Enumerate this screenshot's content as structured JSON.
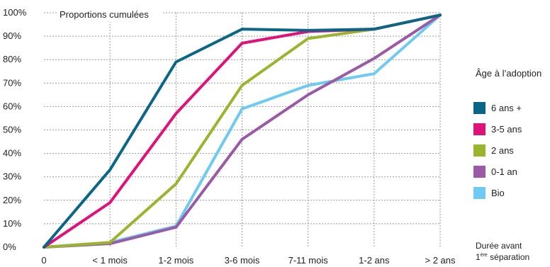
{
  "chart_data": {
    "type": "line",
    "title": "Proportions cumulées",
    "xlabel_line1": "Durée avant",
    "xlabel_line2_prefix": "1",
    "xlabel_line2_sup": "ère",
    "xlabel_line2_suffix": " séparation",
    "ylabel": "",
    "categories": [
      "0",
      "< 1 mois",
      "1-2 mois",
      "3-6 mois",
      "7-11 mois",
      "1-2 ans",
      "> 2 ans"
    ],
    "ylim": [
      0,
      100
    ],
    "yticks": [
      "0%",
      "10%",
      "20%",
      "30%",
      "40%",
      "50%",
      "60%",
      "70%",
      "80%",
      "90%",
      "100%"
    ],
    "legend_title": "Âge à l’adoption",
    "legend_position": "right",
    "grid": "dashed",
    "series": [
      {
        "name": "6 ans +",
        "color": "#0a6688",
        "values": [
          0,
          33,
          79,
          93,
          92.5,
          93,
          99
        ]
      },
      {
        "name": "3-5 ans",
        "color": "#e0127a",
        "values": [
          0,
          19,
          57,
          87,
          92,
          93,
          99
        ]
      },
      {
        "name": "2 ans",
        "color": "#99b52e",
        "values": [
          0,
          2,
          27,
          69,
          89,
          93,
          99
        ]
      },
      {
        "name": "0-1 an",
        "color": "#9b5aa6",
        "values": [
          0,
          1.5,
          8.5,
          46,
          65,
          80.5,
          99
        ]
      },
      {
        "name": "Bio",
        "color": "#6dcaf2",
        "values": [
          0,
          2,
          9,
          59,
          69,
          74,
          99
        ]
      }
    ]
  }
}
